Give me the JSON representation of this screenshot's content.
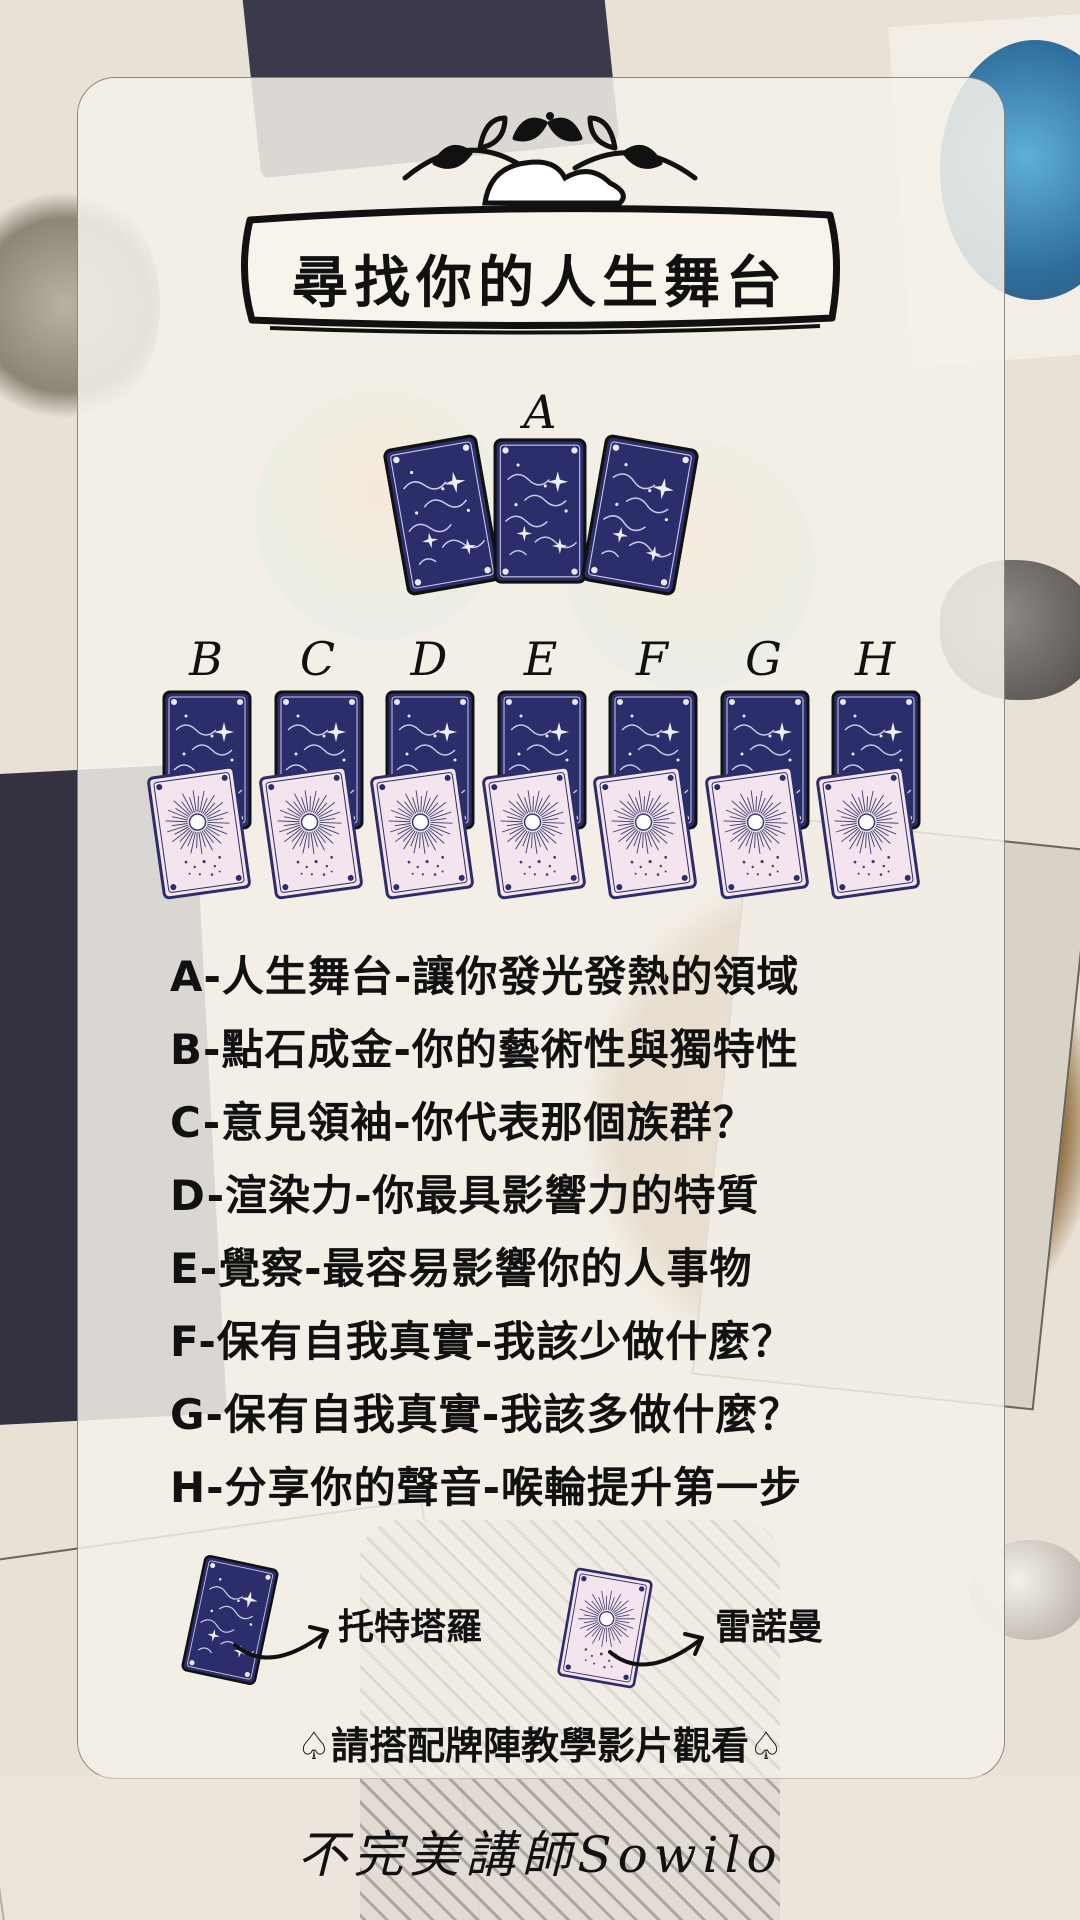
{
  "title": "尋找你的人生舞台",
  "spread": {
    "top_letter": "A",
    "bottom_letters": [
      "B",
      "C",
      "D",
      "E",
      "F",
      "G",
      "H"
    ]
  },
  "descriptions": [
    "A-人生舞台-讓你發光發熱的領域",
    "B-點石成金-你的藝術性與獨特性",
    "C-意見領袖-你代表那個族群？",
    "D-渲染力-你最具影響力的特質",
    "E-覺察-最容易影響你的人事物",
    "F-保有自我真實-我該少做什麼？",
    "G-保有自我真實-我該多做什麼？",
    "H-分享你的聲音-喉輪提升第一步"
  ],
  "legend": {
    "tarot_label": "托特塔羅",
    "lenormand_label": "雷諾曼"
  },
  "note": "♤請搭配牌陣教學影片觀看♤",
  "signature": "不完美講師Sowilo",
  "colors": {
    "tarot_card": "#2b2e6b",
    "lenormand_card": "#f3e4ee",
    "ink": "#111111"
  }
}
